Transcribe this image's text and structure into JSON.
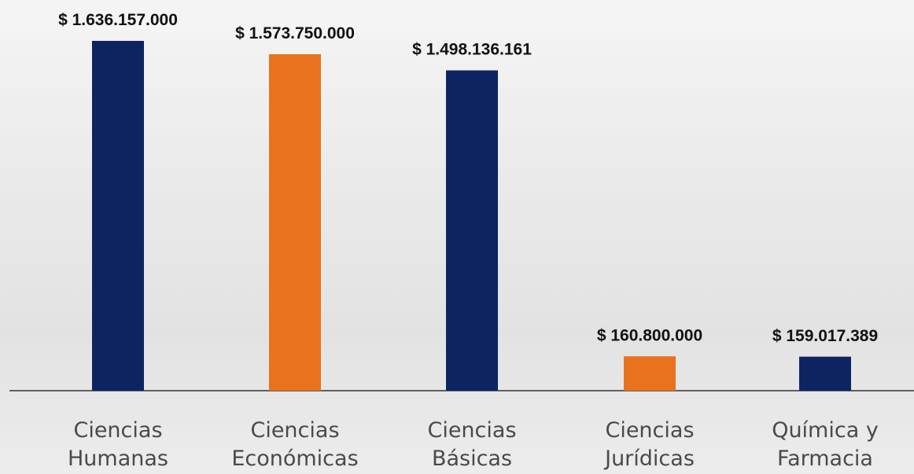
{
  "chart_data": {
    "type": "bar",
    "categories": [
      "Ciencias Humanas",
      "Ciencias Económicas",
      "Ciencias Básicas",
      "Ciencias Jurídicas",
      "Química y Farmacia"
    ],
    "values": [
      1636157000,
      1573750000,
      1498136161,
      160800000,
      159017389
    ],
    "value_labels": [
      "$ 1.636.157.000",
      "$ 1.573.750.000",
      "$ 1.498.136.161",
      "$ 160.800.000",
      "$ 159.017.389"
    ],
    "colors": [
      "#0e2462",
      "#e8721e",
      "#0e2462",
      "#e8721e",
      "#0e2462"
    ]
  }
}
